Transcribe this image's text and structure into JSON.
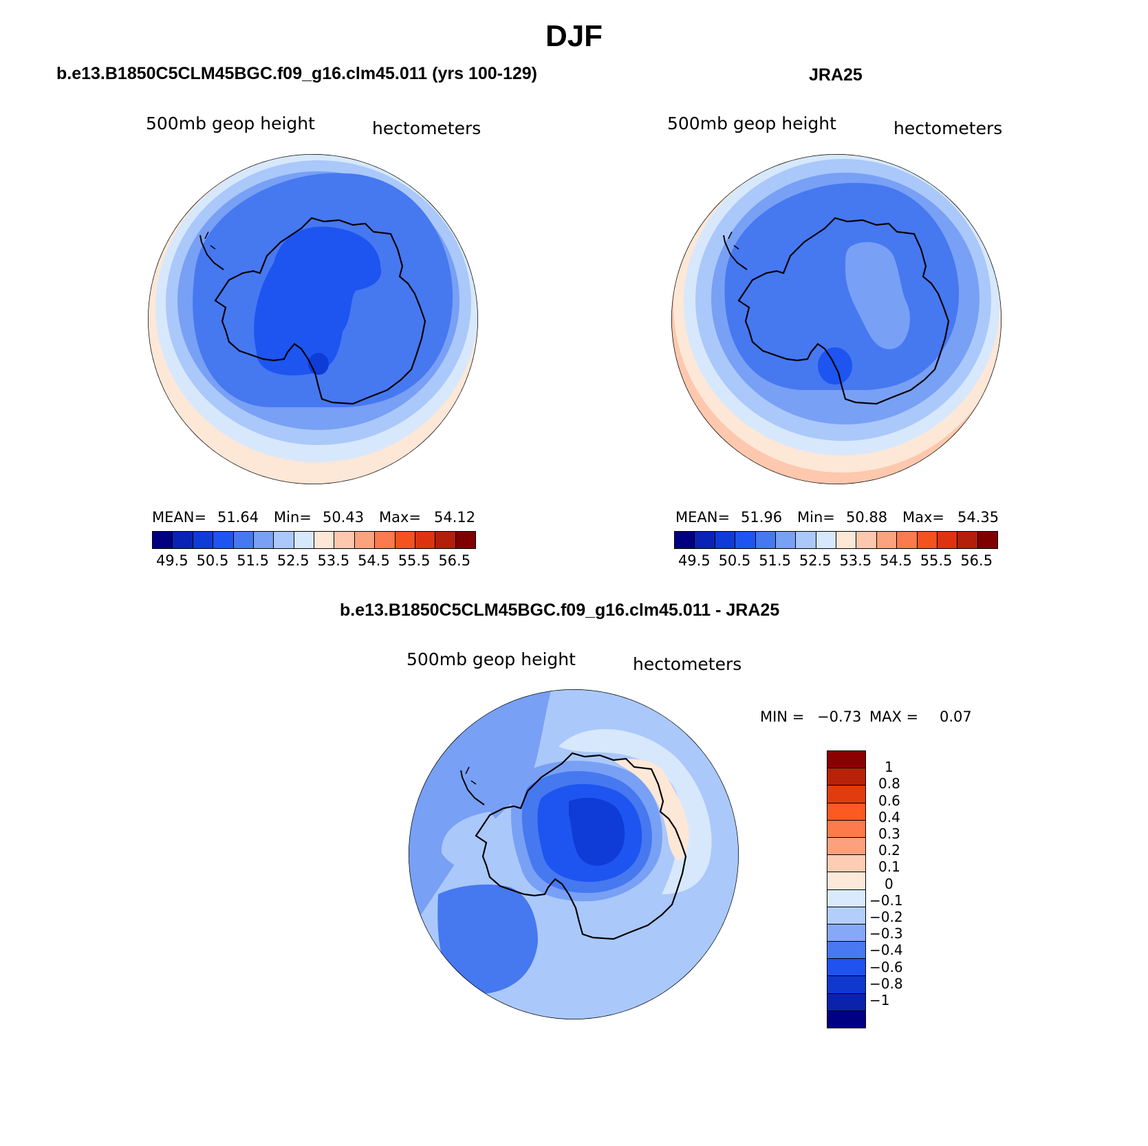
{
  "figure": {
    "title": "DJF"
  },
  "panels": {
    "model": {
      "title": "b.e13.B1850C5CLM45BGC.f09_g16.clm45.011 (yrs 100-129)",
      "variable": "500mb geop height",
      "units": "hectometers",
      "stats": {
        "mean_label": "MEAN=",
        "mean": "51.64",
        "min_label": "Min=",
        "min": "50.43",
        "max_label": "Max=",
        "max": "54.12"
      }
    },
    "obs": {
      "title": "JRA25",
      "variable": "500mb geop height",
      "units": "hectometers",
      "stats": {
        "mean_label": "MEAN=",
        "mean": "51.96",
        "min_label": "Min=",
        "min": "50.88",
        "max_label": "Max=",
        "max": "54.35"
      }
    },
    "diff": {
      "title": "b.e13.B1850C5CLM45BGC.f09_g16.clm45.011 - JRA25",
      "variable": "500mb geop height",
      "units": "hectometers",
      "stats": {
        "min_label": "MIN =",
        "min": "−0.73",
        "max_label": "MAX =",
        "max": "0.07"
      }
    }
  },
  "colorbars": {
    "field_colors": [
      "#000080",
      "#0a23b4",
      "#0f3cd7",
      "#1e55f0",
      "#4678f0",
      "#78a0f5",
      "#aac8fa",
      "#d7e8fc",
      "#fde7d7",
      "#fdc8ad",
      "#fba37e",
      "#fb7a4e",
      "#f4521f",
      "#de3310",
      "#b31f0b",
      "#800000"
    ],
    "field_ticks": [
      "49.5",
      "50.5",
      "51.5",
      "52.5",
      "53.5",
      "54.5",
      "55.5",
      "56.5"
    ],
    "diff_colors_top_to_bottom": [
      "#8b0000",
      "#b72209",
      "#e33b10",
      "#fb5a22",
      "#fd7a4a",
      "#fda07e",
      "#fecdb3",
      "#fde9da",
      "#d9eafd",
      "#b3cefb",
      "#86a9f7",
      "#4a78f1",
      "#1f52f1",
      "#1038cf",
      "#0b22ad",
      "#000083"
    ],
    "diff_ticks": [
      "1",
      "0.8",
      "0.6",
      "0.4",
      "0.3",
      "0.2",
      "0.1",
      "0",
      "−0.1",
      "−0.2",
      "−0.3",
      "−0.4",
      "−0.6",
      "−0.8",
      "−1"
    ]
  }
}
